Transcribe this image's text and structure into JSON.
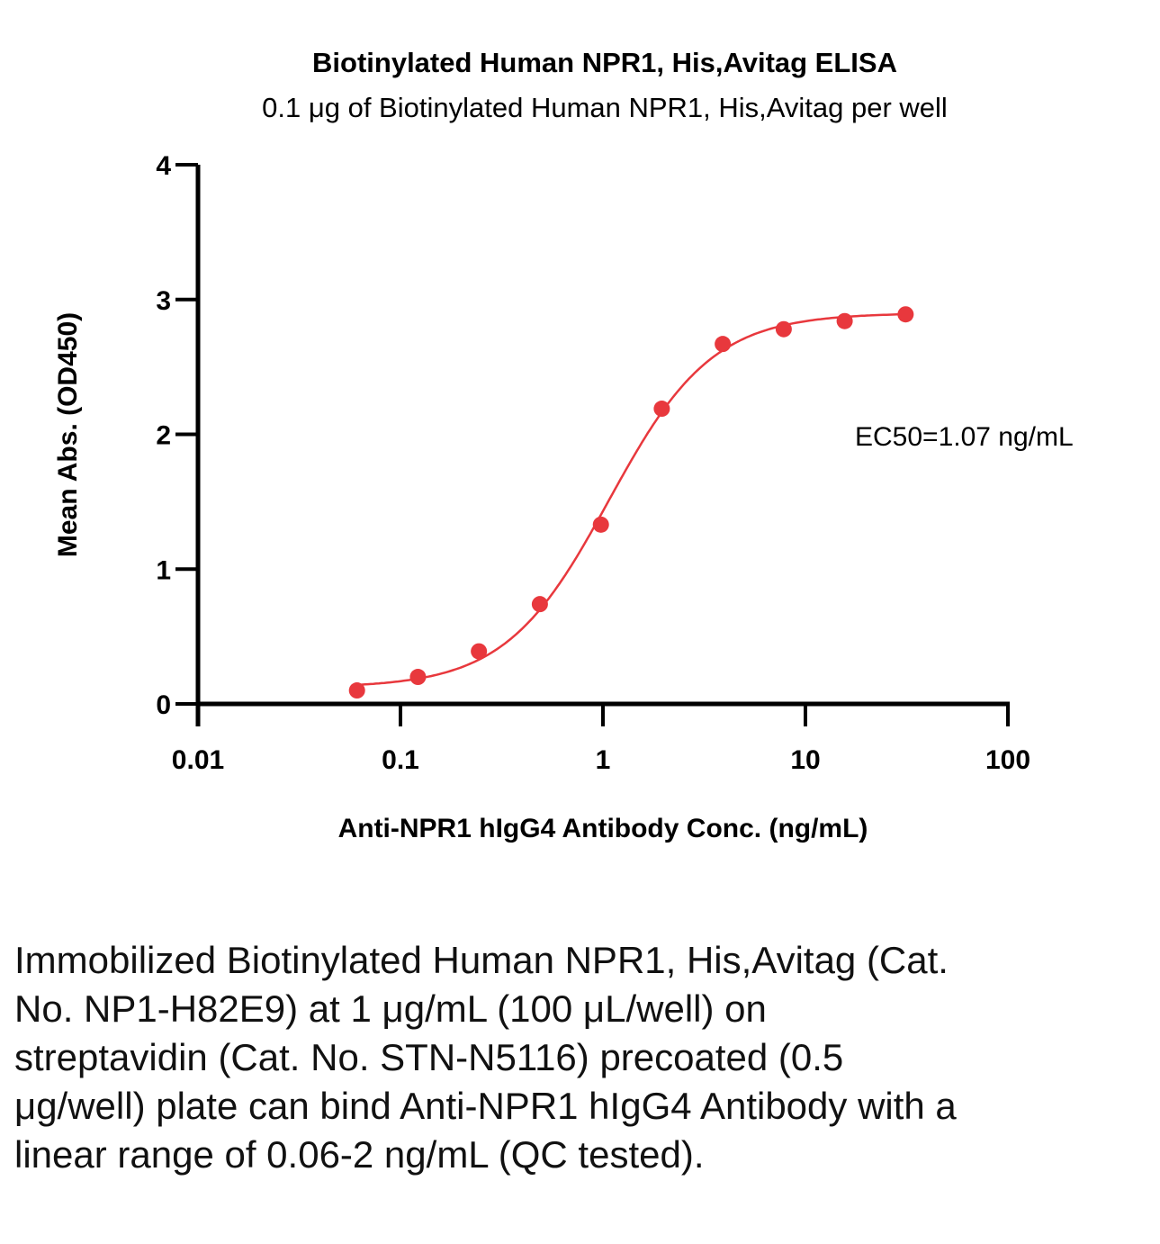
{
  "chart_data": {
    "type": "line",
    "title": "Biotinylated Human NPR1, His,Avitag ELISA",
    "subtitle": "0.1 μg of Biotinylated Human NPR1, His,Avitag per well",
    "xlabel": "Anti-NPR1 hIgG4 Antibody Conc. (ng/mL)",
    "ylabel": "Mean Abs. (OD450)",
    "xscale": "log",
    "xlim": [
      0.01,
      100
    ],
    "ylim": [
      0,
      4
    ],
    "xticks": [
      "0.01",
      "0.1",
      "1",
      "10",
      "100"
    ],
    "yticks": [
      "0",
      "1",
      "2",
      "3",
      "4"
    ],
    "grid": false,
    "series": [
      {
        "color": "#e8383d",
        "x": [
          0.061,
          0.122,
          0.244,
          0.488,
          0.977,
          1.953,
          3.906,
          7.813,
          15.625,
          31.25
        ],
        "y": [
          0.1,
          0.2,
          0.39,
          0.74,
          1.33,
          2.19,
          2.67,
          2.78,
          2.84,
          2.89
        ]
      }
    ],
    "fit": {
      "type": "4PL",
      "bottom": 0.12,
      "top": 2.9,
      "ec50": 1.07,
      "hill": 1.7
    },
    "annotation": "EC50=1.07 ng/mL"
  },
  "caption": "Immobilized Biotinylated Human NPR1, His,Avitag (Cat. No. NP1-H82E9) at 1 μg/mL (100 μL/well) on streptavidin (Cat. No. STN-N5116) precoated (0.5 μg/well) plate can bind Anti-NPR1 hIgG4 Antibody with a linear range of 0.06-2 ng/mL (QC tested)."
}
